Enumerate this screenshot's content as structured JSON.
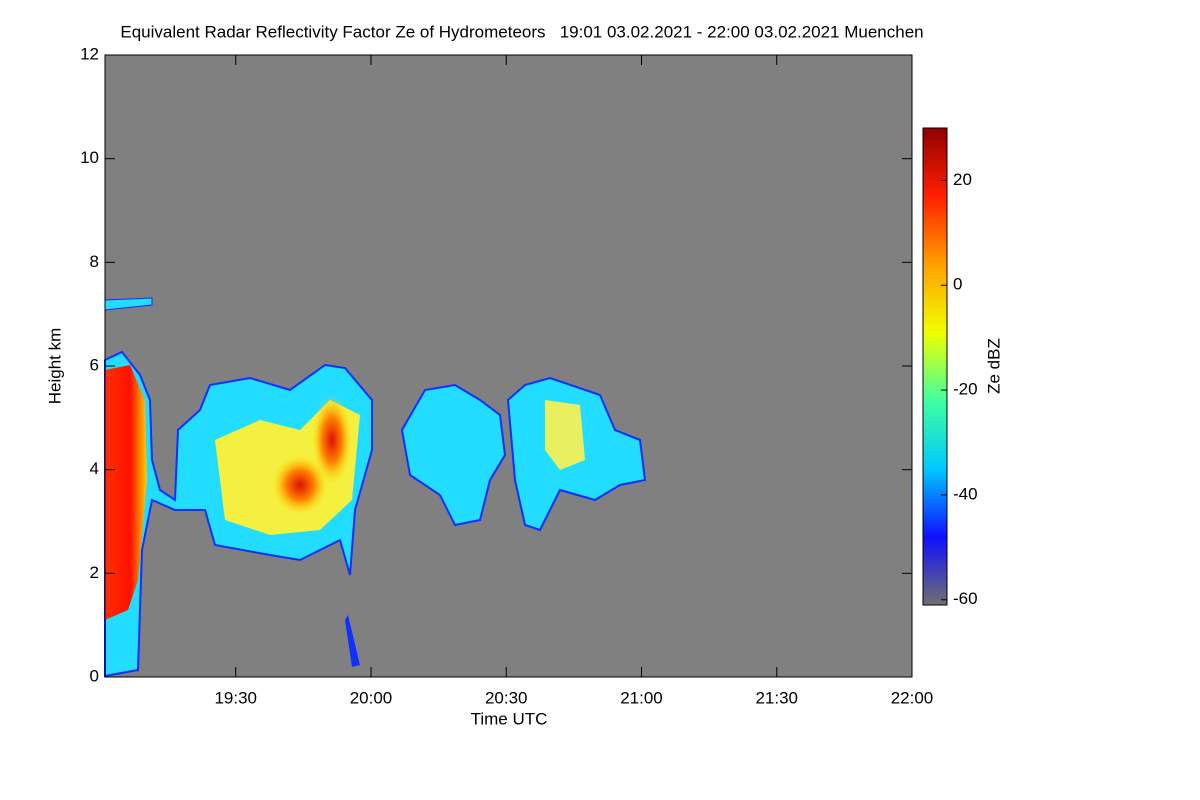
{
  "chart_data": {
    "type": "time-height",
    "title": "Equivalent Radar Reflectivity Factor Ze of Hydrometeors   19:01 03.02.2021 - 22:00 03.02.2021 Muenchen",
    "x_label": "Time UTC",
    "y_label": "Height km",
    "xlim": [
      1141,
      1320
    ],
    "xticks": [
      {
        "value": 1170,
        "label": "19:30"
      },
      {
        "value": 1200,
        "label": "20:00"
      },
      {
        "value": 1230,
        "label": "20:30"
      },
      {
        "value": 1260,
        "label": "21:00"
      },
      {
        "value": 1290,
        "label": "21:30"
      },
      {
        "value": 1320,
        "label": "22:00"
      }
    ],
    "ylim": [
      0,
      12
    ],
    "yticks": [
      0,
      2,
      4,
      6,
      8,
      10,
      12
    ],
    "background": "#808080",
    "colorbar": {
      "label": "Ze dBZ",
      "lim": [
        -61,
        30
      ],
      "ticks": [
        20,
        0,
        -20,
        -40,
        -60
      ],
      "colors": [
        "#707070",
        "#1010ff",
        "#00c8ff",
        "#40ffa0",
        "#f0ff00",
        "#ffa000",
        "#ff2000",
        "#900000"
      ]
    }
  }
}
